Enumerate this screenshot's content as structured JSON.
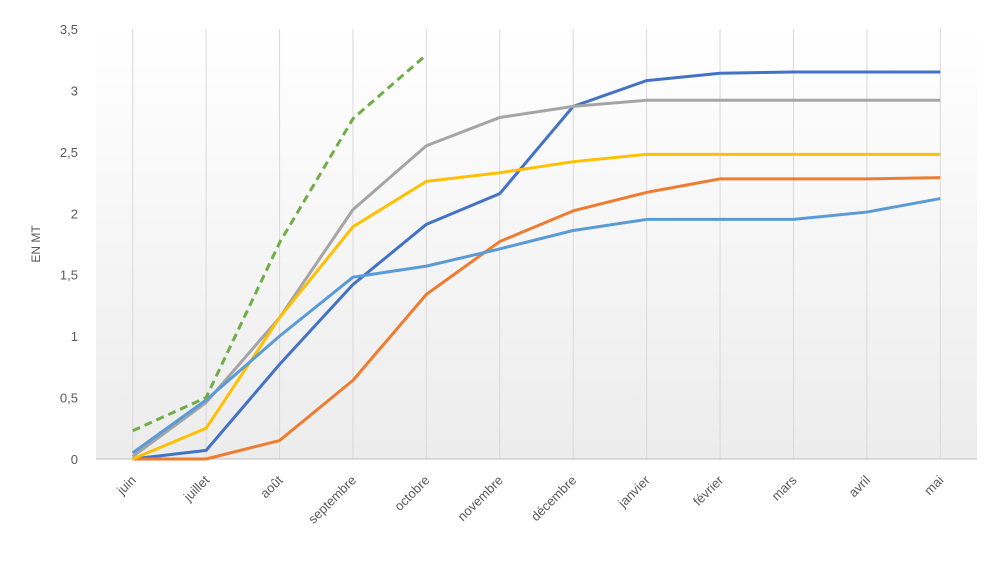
{
  "chart_data": {
    "type": "line",
    "y_label": "EN MT",
    "categories": [
      "juin",
      "juillet",
      "août",
      "septembre",
      "octobre",
      "novembre",
      "décembre",
      "janvier",
      "février",
      "mars",
      "avril",
      "mai"
    ],
    "ylim": [
      0,
      3.5
    ],
    "yticks": [
      0,
      {
        "value": 0.5,
        "label": "0,5"
      },
      1,
      {
        "value": 1.5,
        "label": "1,5"
      },
      2,
      {
        "value": 2.5,
        "label": "2,5"
      },
      3,
      {
        "value": 3.5,
        "label": "3,5"
      }
    ],
    "grid": true,
    "series": [
      {
        "color": "#4472c4",
        "values": [
          0,
          0.07,
          0.77,
          1.42,
          1.91,
          2.16,
          2.87,
          3.08,
          3.14,
          3.15,
          3.15,
          3.15
        ]
      },
      {
        "color": "#ed7d31",
        "values": [
          0,
          0,
          0.15,
          0.64,
          1.34,
          1.77,
          2.02,
          2.17,
          2.28,
          2.28,
          2.28,
          2.29
        ]
      },
      {
        "color": "#a5a5a5",
        "values": [
          0.02,
          0.46,
          1.15,
          2.03,
          2.55,
          2.78,
          2.87,
          2.92,
          2.92,
          2.92,
          2.92,
          2.92
        ]
      },
      {
        "color": "#ffc000",
        "values": [
          0,
          0.25,
          1.15,
          1.89,
          2.26,
          2.33,
          2.42,
          2.48,
          2.48,
          2.48,
          2.48,
          2.48
        ]
      },
      {
        "color": "#5b9bd5",
        "values": [
          0.05,
          0.48,
          1.0,
          1.48,
          1.57,
          1.71,
          1.86,
          1.95,
          1.95,
          1.95,
          2.01,
          2.12
        ]
      },
      {
        "color": "#70ad47",
        "dashed": true,
        "values": [
          0.23,
          0.5,
          1.76,
          2.77,
          3.29,
          null,
          null,
          null,
          null,
          null,
          null,
          null
        ]
      }
    ]
  }
}
